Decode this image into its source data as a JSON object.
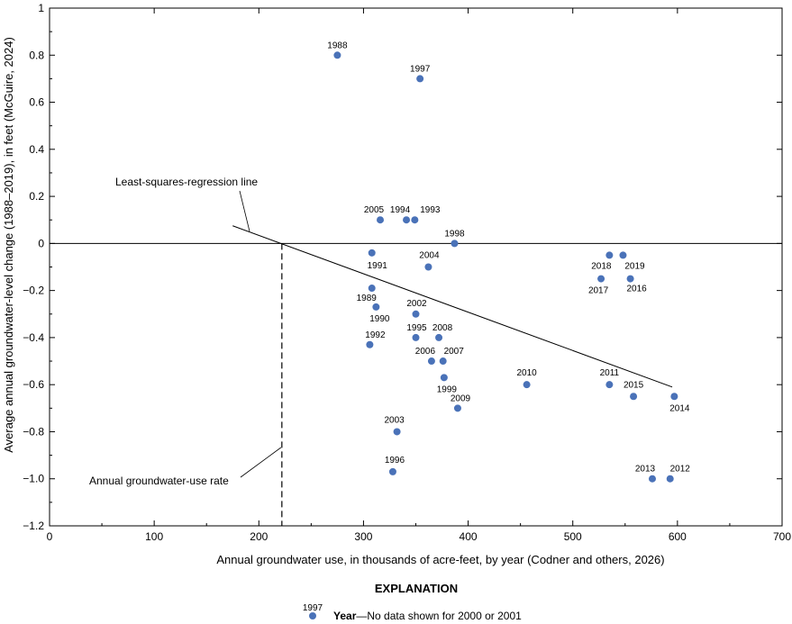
{
  "chart_data": {
    "type": "scatter",
    "xlabel": "Annual groundwater use, in thousands of acre-feet, by year (Codner and others, 2026)",
    "ylabel": "Average annual groundwater-level change (1988–2019), in feet (McGuire, 2024)",
    "xlim": [
      0,
      700
    ],
    "ylim": [
      -1.2,
      1
    ],
    "x_ticks": [
      0,
      100,
      200,
      300,
      400,
      500,
      600,
      700
    ],
    "x_tick_labels": [
      "0",
      "100",
      "200",
      "300",
      "400",
      "500",
      "600",
      "700"
    ],
    "y_ticks": [
      1,
      0.8,
      0.6,
      0.4,
      0.2,
      0,
      -0.2,
      -0.4,
      -0.6,
      -0.8,
      -1.0,
      -1.2
    ],
    "y_tick_labels": [
      "1",
      "0.8",
      "0.6",
      "0.4",
      "0.2",
      "0",
      "−0.2",
      "−0.4",
      "−0.6",
      "−0.8",
      "−1.0",
      "−1.2"
    ],
    "marker_color": "#4a72b8",
    "points": [
      {
        "label": "1988",
        "x": 275,
        "y": 0.8
      },
      {
        "label": "1997",
        "x": 354,
        "y": 0.7
      },
      {
        "label": "2005",
        "x": 316,
        "y": 0.1
      },
      {
        "label": "1994",
        "x": 341,
        "y": 0.1
      },
      {
        "label": "1993",
        "x": 349,
        "y": 0.1
      },
      {
        "label": "1998",
        "x": 387,
        "y": 0.0
      },
      {
        "label": "1991",
        "x": 308,
        "y": -0.04
      },
      {
        "label": "2004",
        "x": 362,
        "y": -0.1
      },
      {
        "label": "2018",
        "x": 535,
        "y": -0.05
      },
      {
        "label": "2019",
        "x": 548,
        "y": -0.05
      },
      {
        "label": "2017",
        "x": 527,
        "y": -0.15
      },
      {
        "label": "2016",
        "x": 555,
        "y": -0.15
      },
      {
        "label": "1989",
        "x": 308,
        "y": -0.19
      },
      {
        "label": "1990",
        "x": 312,
        "y": -0.27
      },
      {
        "label": "2002",
        "x": 350,
        "y": -0.3
      },
      {
        "label": "1992",
        "x": 306,
        "y": -0.43
      },
      {
        "label": "1995",
        "x": 350,
        "y": -0.4
      },
      {
        "label": "2008",
        "x": 372,
        "y": -0.4
      },
      {
        "label": "2006",
        "x": 365,
        "y": -0.5
      },
      {
        "label": "2007",
        "x": 376,
        "y": -0.5
      },
      {
        "label": "1999",
        "x": 377,
        "y": -0.57
      },
      {
        "label": "2009",
        "x": 390,
        "y": -0.7
      },
      {
        "label": "2010",
        "x": 456,
        "y": -0.6
      },
      {
        "label": "2011",
        "x": 535,
        "y": -0.6
      },
      {
        "label": "2015",
        "x": 558,
        "y": -0.65
      },
      {
        "label": "2014",
        "x": 597,
        "y": -0.65
      },
      {
        "label": "2003",
        "x": 332,
        "y": -0.8
      },
      {
        "label": "1996",
        "x": 328,
        "y": -0.97
      },
      {
        "label": "2013",
        "x": 576,
        "y": -1.0
      },
      {
        "label": "2012",
        "x": 593,
        "y": -1.0
      }
    ],
    "zero_line": {
      "y": 0
    },
    "regression_line": {
      "label": "Least-squares-regression line",
      "x1": 175,
      "y1": 0.075,
      "x2": 595,
      "y2": -0.61
    },
    "usage_rate_line": {
      "label": "Annual groundwater-use rate",
      "x": 222
    }
  },
  "explanation": {
    "title": "EXPLANATION",
    "example_label": "1997",
    "item_bold": "Year",
    "item_text": "—No data shown for 2000 or 2001"
  }
}
